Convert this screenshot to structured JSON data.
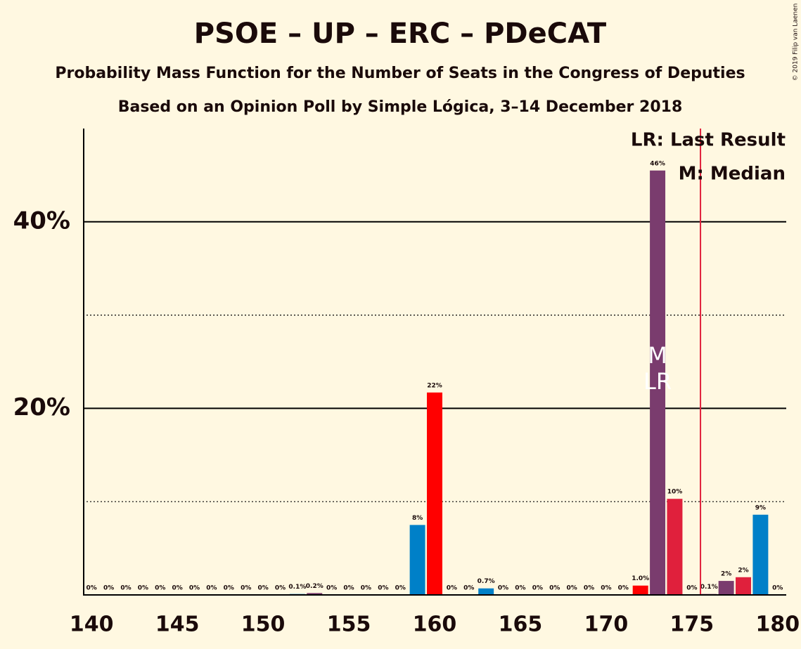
{
  "chart_data": {
    "type": "bar",
    "title": "PSOE – UP – ERC – PDeCAT",
    "subtitle": "Probability Mass Function for the Number of Seats in the Congress of Deputies",
    "subtitle2": "Based on an Opinion Poll by Simple Lógica, 3–14 December 2018",
    "copyright": "© 2019 Filip van Laenen",
    "legend": [
      "LR: Last Result",
      "M: Median"
    ],
    "x": [
      140,
      141,
      142,
      143,
      144,
      145,
      146,
      147,
      148,
      149,
      150,
      151,
      152,
      153,
      154,
      155,
      156,
      157,
      158,
      159,
      160,
      161,
      162,
      163,
      164,
      165,
      166,
      167,
      168,
      169,
      170,
      171,
      172,
      173,
      174,
      175,
      176,
      177,
      178,
      179,
      180
    ],
    "values": [
      0,
      0,
      0,
      0,
      0,
      0,
      0,
      0,
      0,
      0,
      0,
      0,
      0.1,
      0.2,
      0,
      0,
      0,
      0,
      0,
      7.5,
      21.7,
      0,
      0,
      0.7,
      0,
      0,
      0,
      0,
      0,
      0,
      0,
      0,
      1.0,
      45.5,
      10.3,
      0,
      0.1,
      1.5,
      1.9,
      8.6,
      0
    ],
    "value_labels": [
      "0%",
      "0%",
      "0%",
      "0%",
      "0%",
      "0%",
      "0%",
      "0%",
      "0%",
      "0%",
      "0%",
      "0%",
      "0.1%",
      "0.2%",
      "0%",
      "0%",
      "0%",
      "0%",
      "0%",
      "8%",
      "22%",
      "0%",
      "0%",
      "0.7%",
      "0%",
      "0%",
      "0%",
      "0%",
      "0%",
      "0%",
      "0%",
      "0%",
      "1.0%",
      "46%",
      "10%",
      "0%",
      "0.1%",
      "2%",
      "2%",
      "9%",
      "0%"
    ],
    "colors": [
      "#0080c8",
      "#ff0000",
      "#0080c8",
      "#ff0000",
      "#0080c8",
      "#ff0000",
      "#0080c8",
      "#ff0000",
      "#0080c8",
      "#ff0000",
      "#0080c8",
      "#ff0000",
      "#0080c8",
      "#7a3c6e",
      "#0080c8",
      "#ff0000",
      "#0080c8",
      "#ff0000",
      "#0080c8",
      "#0080c8",
      "#ff0000",
      "#0080c8",
      "#ff0000",
      "#0080c8",
      "#ff0000",
      "#0080c8",
      "#ff0000",
      "#0080c8",
      "#ff0000",
      "#0080c8",
      "#ff0000",
      "#0080c8",
      "#ff0000",
      "#7a3c6e",
      "#e0203c",
      "#0080c8",
      "#7a3c6e",
      "#7a3c6e",
      "#e0203c",
      "#0080c8",
      "#ff0000"
    ],
    "xlim": [
      139.5,
      180.5
    ],
    "xticks": [
      140,
      145,
      150,
      155,
      160,
      165,
      170,
      175,
      180
    ],
    "ylim": [
      0,
      50
    ],
    "yticks": [
      {
        "value": 20,
        "label": "20%"
      },
      {
        "value": 40,
        "label": "40%"
      }
    ],
    "minor_yticks": [
      10,
      30
    ],
    "majority_line": 175.5,
    "median": {
      "x": 173,
      "label": "M"
    },
    "last_result": {
      "x": 173,
      "label": "LR"
    }
  }
}
